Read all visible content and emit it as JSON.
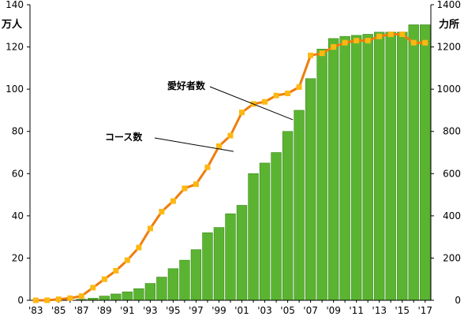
{
  "chart_data": {
    "type": "bar+line",
    "left_axis_unit": "万人",
    "right_axis_unit": "力所",
    "left_ticks": [
      "0",
      "20",
      "40",
      "60",
      "80",
      "100",
      "120",
      "140"
    ],
    "right_ticks": [
      "0",
      "200",
      "400",
      "600",
      "800",
      "1000",
      "1200",
      "1400"
    ],
    "x_tick_labels": [
      "'83",
      "'85",
      "'87",
      "'89",
      "'91",
      "'93",
      "'95",
      "'97",
      "'99",
      "'01",
      "'03",
      "'05",
      "'07",
      "'09",
      "'11",
      "'13",
      "'15",
      "'17"
    ],
    "x_tick_years": [
      1983,
      1985,
      1987,
      1989,
      1991,
      1993,
      1995,
      1997,
      1999,
      2001,
      2003,
      2005,
      2007,
      2009,
      2011,
      2013,
      2015,
      2017
    ],
    "ylim_left": [
      0,
      140
    ],
    "ylim_right": [
      0,
      1400
    ],
    "years": [
      1983,
      1984,
      1985,
      1986,
      1987,
      1988,
      1989,
      1990,
      1991,
      1992,
      1993,
      1994,
      1995,
      1996,
      1997,
      1998,
      1999,
      2000,
      2001,
      2002,
      2003,
      2004,
      2005,
      2006,
      2007,
      2008,
      2009,
      2010,
      2011,
      2012,
      2013,
      2014,
      2015,
      2016,
      2017
    ],
    "series": [
      {
        "name": "コース数",
        "axis": "right",
        "kind": "bar",
        "values": [
          0,
          0,
          0,
          0,
          5,
          10,
          20,
          30,
          40,
          55,
          80,
          110,
          150,
          190,
          240,
          320,
          345,
          410,
          450,
          600,
          650,
          700,
          800,
          900,
          1050,
          1190,
          1240,
          1250,
          1255,
          1260,
          1270,
          1270,
          1270,
          1305,
          1305
        ]
      },
      {
        "name": "愛好者数",
        "axis": "left",
        "kind": "line",
        "values": [
          0,
          0,
          0.5,
          1,
          2,
          6,
          10,
          14,
          19,
          25,
          34,
          42,
          47,
          53,
          55,
          63,
          73,
          78,
          89,
          93,
          94,
          97,
          98,
          101,
          116,
          117,
          120,
          122,
          123,
          123,
          125,
          126,
          126,
          122,
          122
        ]
      }
    ],
    "grid": false,
    "colors": {
      "bar_fill": "#5bb431",
      "bar_stroke": "#3a8a1c",
      "line": "#ee7d0a",
      "marker": "#fdb813"
    }
  }
}
